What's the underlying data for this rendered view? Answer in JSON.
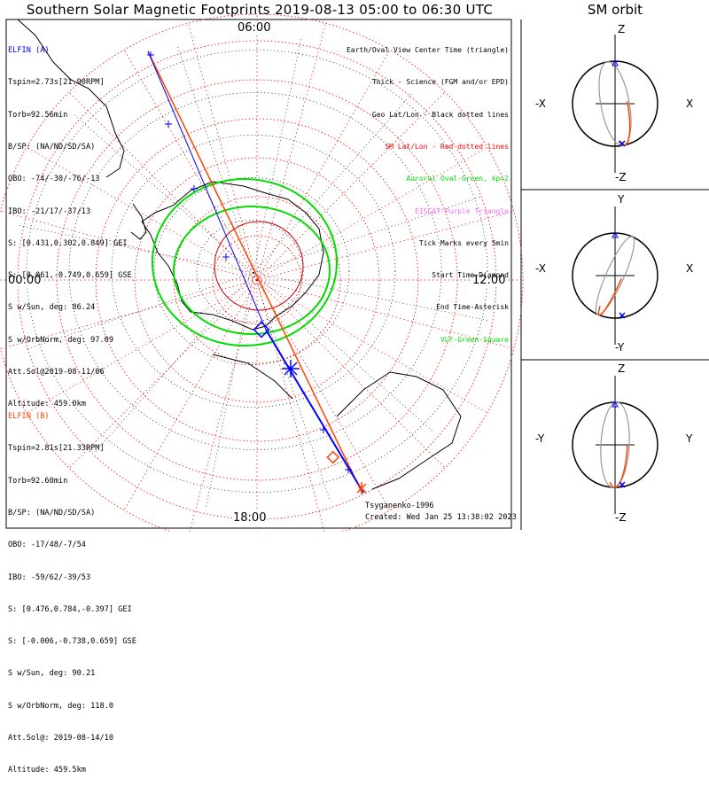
{
  "title": "Southern Solar Magnetic Footprints 2019-08-13 05:00 to 06:30 UTC",
  "orbit_title": "SM orbit",
  "polar_labels": {
    "top": "06:00",
    "left": "00:00",
    "right": "12:00",
    "bottom": "18:00"
  },
  "colors": {
    "elfin_a": "#0000ff",
    "elfin_b": "#ff4500",
    "oval": "#00dd00",
    "geo_grid": "#000000",
    "sm_grid": "#ff0000",
    "coast": "#000000"
  },
  "elfin_a": {
    "name": "ELFIN (A)",
    "lines": [
      "Tspin=2.73s[21.90RPM]",
      "Torb=92.56min",
      "B/SP: (NA/ND/SD/SA)",
      "OBO: -74/-30/-76/-13",
      "IBO: -21/17/-37/13",
      "S: [0.431,0.302,0.849] GEI",
      "S: [0.061,-0.749,0.659] GSE",
      "S w/Sun, deg: 86.24",
      "S w/OrbNorm, deg: 97.09",
      "Att.Sol@2019-08-11/06",
      "Altitude: 459.0km"
    ]
  },
  "elfin_b": {
    "name": "ELFIN (B)",
    "lines": [
      "Tspin=2.81s[21.33RPM]",
      "Torb=92.60min",
      "B/SP: (NA/ND/SD/SA)",
      "OBO: -17/48/-7/54",
      "IBO: -59/62/-39/53",
      "S: [0.476,0.784,-0.397] GEI",
      "S: [-0.006,-0.738,0.659] GSE",
      "S w/Sun, deg: 90.21",
      "S w/OrbNorm, deg: 118.0",
      "Att.Sol@: 2019-08-14/10",
      "Altitude: 459.5km"
    ]
  },
  "legend": [
    {
      "text": "Earth/Oval View Center Time (triangle)",
      "color": "#000000"
    },
    {
      "text": "Thick - Science (FGM and/or EPD)",
      "color": "#000000"
    },
    {
      "text": "Geo Lat/Lon - Black dotted lines",
      "color": "#000000"
    },
    {
      "text": "SM Lat/Lon - Red dotted lines",
      "color": "#ff0000"
    },
    {
      "text": "Auroral Oval-Green, kp=2",
      "color": "#00dd00"
    },
    {
      "text": "EISCAT-Purple Triangle",
      "color": "#ff66ff"
    },
    {
      "text": "Tick Marks every 5min",
      "color": "#000000"
    },
    {
      "text": "Start Time-Diamond",
      "color": "#000000"
    },
    {
      "text": "End Time-Asterisk",
      "color": "#000000"
    },
    {
      "text": "VLF-Green Square",
      "color": "#00dd00"
    }
  ],
  "footer": {
    "credit": "Tsyganenko-1996",
    "created": "Created: Wed Jan 25 13:38:02 2023"
  },
  "orbit_panels": [
    {
      "top": "Z",
      "bottom": "-Z",
      "left": "-X",
      "right": "X"
    },
    {
      "top": "Y",
      "bottom": "-Y",
      "left": "-X",
      "right": "X"
    },
    {
      "top": "Z",
      "bottom": "-Z",
      "left": "-Y",
      "right": "Y"
    }
  ],
  "chart_data": [
    {
      "type": "scatter",
      "title": "Southern Solar Magnetic Footprints 2019-08-13 05:00 to 06:30 UTC",
      "projection": "polar, south pole, SM MLT",
      "mlt_ticks": [
        "00:00",
        "06:00",
        "12:00",
        "18:00"
      ],
      "series": [
        {
          "name": "ELFIN (A)"
        },
        {
          "name": "ELFIN (B)"
        }
      ]
    },
    {
      "type": "scatter",
      "title": "SM orbit",
      "panels": [
        "X-Z",
        "X-Y",
        "Y-Z"
      ]
    }
  ]
}
